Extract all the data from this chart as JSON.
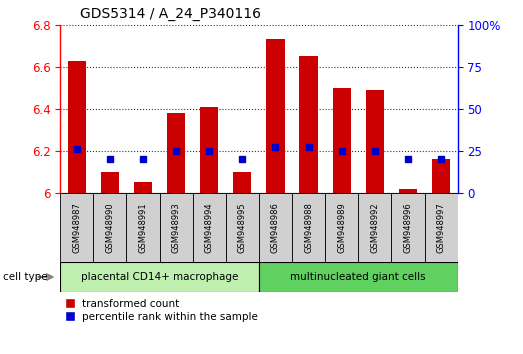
{
  "title": "GDS5314 / A_24_P340116",
  "samples": [
    "GSM948987",
    "GSM948990",
    "GSM948991",
    "GSM948993",
    "GSM948994",
    "GSM948995",
    "GSM948986",
    "GSM948988",
    "GSM948989",
    "GSM948992",
    "GSM948996",
    "GSM948997"
  ],
  "red_values": [
    6.63,
    6.1,
    6.05,
    6.38,
    6.41,
    6.1,
    6.73,
    6.65,
    6.5,
    6.49,
    6.02,
    6.16
  ],
  "blue_values": [
    6.21,
    6.16,
    6.16,
    6.2,
    6.2,
    6.16,
    6.22,
    6.22,
    6.2,
    6.2,
    6.16,
    6.16
  ],
  "group1_label": "placental CD14+ macrophage",
  "group2_label": "multinucleated giant cells",
  "group1_count": 6,
  "group2_count": 6,
  "ylim": [
    6.0,
    6.8
  ],
  "yticks": [
    6.0,
    6.2,
    6.4,
    6.6,
    6.8
  ],
  "right_yticks": [
    0,
    25,
    50,
    75,
    100
  ],
  "right_ylim": [
    0,
    100
  ],
  "bar_color": "#cc0000",
  "dot_color": "#0000cc",
  "group1_bg": "#c0f0b0",
  "group2_bg": "#60d060",
  "xlabel_bg": "#d0d0d0",
  "legend_red_label": "transformed count",
  "legend_blue_label": "percentile rank within the sample",
  "cell_type_label": "cell type"
}
